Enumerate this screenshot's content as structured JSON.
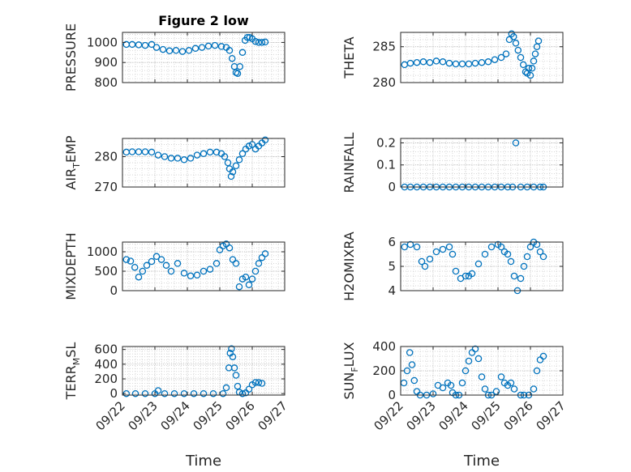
{
  "figure_title": "Figure 2 low",
  "marker_color": "#0072BD",
  "chart_data": [
    {
      "id": "pressure",
      "type": "scatter",
      "ylabel_main": "PRESSURE",
      "ylabel_sub": "",
      "ylabel_tail": "",
      "ylim": [
        800,
        1050
      ],
      "yticks": [
        800,
        900,
        1000
      ],
      "ytick_labels": [
        "800",
        "900",
        "1000"
      ],
      "xlim": [
        0,
        5
      ],
      "xtick_labels": [
        "09/22",
        "09/23",
        "09/24",
        "09/25",
        "09/26",
        "09/27"
      ],
      "series": [
        {
          "name": "PRESSURE",
          "x": [
            0.12,
            0.3,
            0.5,
            0.7,
            0.9,
            1.05,
            1.25,
            1.45,
            1.65,
            1.85,
            2.05,
            2.25,
            2.45,
            2.65,
            2.85,
            3.05,
            3.2,
            3.3,
            3.38,
            3.45,
            3.5,
            3.55,
            3.62,
            3.7,
            3.78,
            3.85,
            3.92,
            4.0,
            4.1,
            4.2,
            4.3,
            4.4
          ],
          "y": [
            990,
            990,
            988,
            985,
            990,
            975,
            965,
            958,
            960,
            955,
            960,
            970,
            975,
            982,
            985,
            980,
            975,
            960,
            920,
            880,
            850,
            845,
            880,
            950,
            1010,
            1025,
            1025,
            1018,
            1005,
            1000,
            1000,
            1002
          ]
        }
      ]
    },
    {
      "id": "theta",
      "type": "scatter",
      "ylabel_main": "THETA",
      "ylabel_sub": "",
      "ylabel_tail": "",
      "ylim": [
        280,
        287
      ],
      "yticks": [
        280,
        285
      ],
      "ytick_labels": [
        "280",
        "285"
      ],
      "xlim": [
        0,
        5
      ],
      "xtick_labels": [
        "09/22",
        "09/23",
        "09/24",
        "09/25",
        "09/26",
        "09/27"
      ],
      "series": [
        {
          "name": "THETA",
          "x": [
            0.12,
            0.3,
            0.5,
            0.7,
            0.9,
            1.1,
            1.3,
            1.5,
            1.7,
            1.9,
            2.1,
            2.3,
            2.5,
            2.7,
            2.9,
            3.1,
            3.25,
            3.35,
            3.42,
            3.48,
            3.55,
            3.62,
            3.7,
            3.78,
            3.85,
            3.9,
            3.95,
            4.0,
            4.05,
            4.1,
            4.15,
            4.2,
            4.25
          ],
          "y": [
            282.5,
            282.7,
            282.8,
            282.9,
            282.8,
            283.0,
            282.9,
            282.7,
            282.6,
            282.6,
            282.6,
            282.7,
            282.8,
            282.9,
            283.2,
            283.5,
            284.0,
            286.0,
            286.8,
            286.4,
            285.5,
            284.5,
            283.5,
            282.5,
            281.5,
            281.3,
            282.0,
            281.0,
            282.0,
            283.0,
            284.0,
            285.0,
            285.8
          ]
        }
      ]
    },
    {
      "id": "air_temp",
      "type": "scatter",
      "ylabel_main": "AIR",
      "ylabel_sub": "T",
      "ylabel_tail": "EMP",
      "ylim": [
        270,
        286
      ],
      "yticks": [
        270,
        280
      ],
      "ytick_labels": [
        "270",
        "280"
      ],
      "xlim": [
        0,
        5
      ],
      "xtick_labels": [
        "09/22",
        "09/23",
        "09/24",
        "09/25",
        "09/26",
        "09/27"
      ],
      "series": [
        {
          "name": "AIR_TEMP",
          "x": [
            0.12,
            0.3,
            0.5,
            0.7,
            0.9,
            1.1,
            1.3,
            1.5,
            1.7,
            1.9,
            2.1,
            2.3,
            2.5,
            2.7,
            2.9,
            3.05,
            3.15,
            3.25,
            3.3,
            3.35,
            3.4,
            3.5,
            3.6,
            3.7,
            3.8,
            3.9,
            4.0,
            4.1,
            4.2,
            4.3,
            4.4
          ],
          "y": [
            281.5,
            281.6,
            281.6,
            281.6,
            281.5,
            280.5,
            280,
            279.5,
            279.5,
            279,
            279.5,
            280.5,
            281,
            281.5,
            281.5,
            281,
            280,
            278,
            276,
            273.5,
            275,
            277,
            279,
            281,
            282.5,
            283.5,
            284,
            282.5,
            283.5,
            284.5,
            285.5
          ]
        }
      ]
    },
    {
      "id": "rainfall",
      "type": "scatter",
      "ylabel_main": "RAINFALL",
      "ylabel_sub": "",
      "ylabel_tail": "",
      "ylim": [
        0,
        0.22
      ],
      "yticks": [
        0,
        0.1,
        0.2
      ],
      "ytick_labels": [
        "0",
        "0.1",
        "0.2"
      ],
      "xlim": [
        0,
        5
      ],
      "xtick_labels": [
        "09/22",
        "09/23",
        "09/24",
        "09/25",
        "09/26",
        "09/27"
      ],
      "series": [
        {
          "name": "RAINFALL",
          "x": [
            0.12,
            0.3,
            0.5,
            0.7,
            0.9,
            1.1,
            1.3,
            1.5,
            1.7,
            1.9,
            2.1,
            2.3,
            2.5,
            2.7,
            2.9,
            3.1,
            3.3,
            3.45,
            3.55,
            3.7,
            3.9,
            4.1,
            4.3,
            4.4
          ],
          "y": [
            0,
            0,
            0,
            0,
            0,
            0,
            0,
            0,
            0,
            0,
            0,
            0,
            0,
            0,
            0,
            0,
            0,
            0,
            0.2,
            0,
            0,
            0,
            0,
            0
          ]
        }
      ]
    },
    {
      "id": "mixdepth",
      "type": "scatter",
      "ylabel_main": "MIXDEPTH",
      "ylabel_sub": "",
      "ylabel_tail": "",
      "ylim": [
        0,
        1250
      ],
      "yticks": [
        0,
        500,
        1000
      ],
      "ytick_labels": [
        "0",
        "500",
        "1000"
      ],
      "xlim": [
        0,
        5
      ],
      "xtick_labels": [
        "09/22",
        "09/23",
        "09/24",
        "09/25",
        "09/26",
        "09/27"
      ],
      "series": [
        {
          "name": "MIXDEPTH",
          "x": [
            0.12,
            0.25,
            0.38,
            0.5,
            0.62,
            0.75,
            0.9,
            1.05,
            1.2,
            1.35,
            1.5,
            1.7,
            1.9,
            2.1,
            2.3,
            2.5,
            2.7,
            2.9,
            3.0,
            3.1,
            3.2,
            3.3,
            3.4,
            3.5,
            3.6,
            3.7,
            3.8,
            3.9,
            4.0,
            4.1,
            4.2,
            4.3,
            4.4
          ],
          "y": [
            800,
            760,
            600,
            350,
            500,
            650,
            750,
            880,
            800,
            650,
            500,
            700,
            450,
            380,
            400,
            500,
            550,
            700,
            1050,
            1150,
            1200,
            1100,
            800,
            700,
            100,
            300,
            350,
            150,
            300,
            500,
            700,
            850,
            950
          ]
        }
      ]
    },
    {
      "id": "h2omixra",
      "type": "scatter",
      "ylabel_main": "H2OMIXRA",
      "ylabel_sub": "",
      "ylabel_tail": "",
      "ylim": [
        4,
        6
      ],
      "yticks": [
        4,
        5,
        6
      ],
      "ytick_labels": [
        "4",
        "5",
        "6"
      ],
      "xlim": [
        0,
        5
      ],
      "xtick_labels": [
        "09/22",
        "09/23",
        "09/24",
        "09/25",
        "09/26",
        "09/27"
      ],
      "series": [
        {
          "name": "H2OMIXRA",
          "x": [
            0.12,
            0.3,
            0.5,
            0.65,
            0.75,
            0.9,
            1.1,
            1.3,
            1.5,
            1.6,
            1.7,
            1.85,
            2.0,
            2.1,
            2.2,
            2.4,
            2.6,
            2.8,
            3.0,
            3.1,
            3.2,
            3.3,
            3.4,
            3.5,
            3.6,
            3.7,
            3.8,
            3.9,
            4.0,
            4.1,
            4.2,
            4.3,
            4.4
          ],
          "y": [
            5.8,
            5.9,
            5.8,
            5.2,
            5.0,
            5.3,
            5.6,
            5.7,
            5.8,
            5.5,
            4.8,
            4.5,
            4.6,
            4.6,
            4.7,
            5.1,
            5.5,
            5.8,
            5.9,
            5.8,
            5.6,
            5.5,
            5.2,
            4.6,
            4.0,
            4.5,
            5.0,
            5.4,
            5.8,
            6.0,
            5.9,
            5.6,
            5.4
          ]
        }
      ]
    },
    {
      "id": "terr_msl",
      "type": "scatter",
      "ylabel_main": "TERR",
      "ylabel_sub": "M",
      "ylabel_tail": "SL",
      "ylim": [
        -20,
        640
      ],
      "yticks": [
        0,
        200,
        400,
        600
      ],
      "ytick_labels": [
        "0",
        "200",
        "400",
        "600"
      ],
      "xlim": [
        0,
        5
      ],
      "xtick_labels": [
        "09/22",
        "09/23",
        "09/24",
        "09/25",
        "09/26",
        "09/27"
      ],
      "series": [
        {
          "name": "TERR_MSL",
          "x": [
            0.12,
            0.4,
            0.7,
            1.0,
            1.1,
            1.3,
            1.6,
            1.9,
            2.2,
            2.5,
            2.8,
            3.1,
            3.2,
            3.28,
            3.32,
            3.36,
            3.4,
            3.45,
            3.5,
            3.55,
            3.6,
            3.7,
            3.8,
            3.9,
            4.0,
            4.1,
            4.2,
            4.3
          ],
          "y": [
            0,
            0,
            0,
            0,
            40,
            0,
            0,
            0,
            0,
            0,
            0,
            0,
            80,
            350,
            550,
            610,
            500,
            350,
            250,
            100,
            20,
            0,
            10,
            60,
            120,
            150,
            150,
            140
          ]
        }
      ]
    },
    {
      "id": "sun_flux",
      "type": "scatter",
      "ylabel_main": "SUN",
      "ylabel_sub": "F",
      "ylabel_tail": "LUX",
      "ylim": [
        0,
        400
      ],
      "yticks": [
        0,
        200,
        400
      ],
      "ytick_labels": [
        "0",
        "200",
        "400"
      ],
      "xlim": [
        0,
        5
      ],
      "xtick_labels": [
        "09/22",
        "09/23",
        "09/24",
        "09/25",
        "09/26",
        "09/27"
      ],
      "series": [
        {
          "name": "SUN_FLUX",
          "x": [
            0.1,
            0.2,
            0.28,
            0.35,
            0.42,
            0.5,
            0.6,
            0.8,
            1.0,
            1.15,
            1.3,
            1.45,
            1.55,
            1.6,
            1.7,
            1.8,
            1.9,
            2.0,
            2.1,
            2.2,
            2.3,
            2.4,
            2.5,
            2.6,
            2.7,
            2.8,
            2.95,
            3.1,
            3.2,
            3.3,
            3.4,
            3.5,
            3.7,
            3.8,
            3.95,
            4.1,
            4.2,
            4.3,
            4.4
          ],
          "y": [
            100,
            200,
            350,
            250,
            120,
            30,
            0,
            0,
            10,
            80,
            60,
            100,
            80,
            20,
            0,
            0,
            100,
            200,
            280,
            350,
            380,
            300,
            150,
            50,
            0,
            0,
            30,
            150,
            100,
            80,
            100,
            50,
            0,
            0,
            0,
            50,
            200,
            290,
            320
          ]
        }
      ]
    }
  ]
}
